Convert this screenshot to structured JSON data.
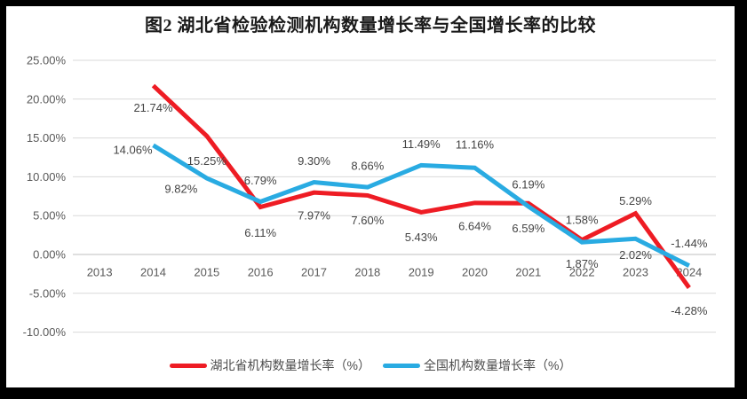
{
  "chart_data": {
    "type": "line",
    "title": "图2  湖北省检验检测机构数量增长率与全国增长率的比较",
    "categories": [
      "2013",
      "2014",
      "2015",
      "2016",
      "2017",
      "2018",
      "2019",
      "2020",
      "2021",
      "2022",
      "2023",
      "2024"
    ],
    "series": [
      {
        "name": "湖北省机构数量增长率（%）",
        "color": "#ee1c24",
        "values": [
          null,
          21.74,
          15.25,
          6.11,
          7.97,
          7.6,
          5.43,
          6.64,
          6.59,
          1.87,
          5.29,
          -4.28
        ],
        "point_labels": [
          "",
          "21.74%",
          "15.25%",
          "6.11%",
          "7.97%",
          "7.60%",
          "5.43%",
          "6.64%",
          "6.59%",
          "1.87%",
          "5.29%",
          "-4.28%"
        ],
        "label_offsets": [
          [
            0,
            0
          ],
          [
            0,
            25
          ],
          [
            0,
            28
          ],
          [
            0,
            29
          ],
          [
            0,
            26
          ],
          [
            0,
            28
          ],
          [
            0,
            28
          ],
          [
            0,
            26
          ],
          [
            0,
            28
          ],
          [
            0,
            27
          ],
          [
            0,
            -14
          ],
          [
            0,
            26
          ]
        ]
      },
      {
        "name": "全国机构数量增长率（%）",
        "color": "#29abe2",
        "values": [
          null,
          14.06,
          9.82,
          6.79,
          9.3,
          8.66,
          11.49,
          11.16,
          6.19,
          1.58,
          2.02,
          -1.44
        ],
        "point_labels": [
          "",
          "14.06%",
          "9.82%",
          "6.79%",
          "9.30%",
          "8.66%",
          "11.49%",
          "11.16%",
          "6.19%",
          "1.58%",
          "2.02%",
          "-1.44%"
        ],
        "label_offsets": [
          [
            0,
            0
          ],
          [
            -23,
            5
          ],
          [
            -29,
            12
          ],
          [
            0,
            -24
          ],
          [
            0,
            -24
          ],
          [
            0,
            -24
          ],
          [
            0,
            -24
          ],
          [
            0,
            -26
          ],
          [
            0,
            -25
          ],
          [
            0,
            -25
          ],
          [
            0,
            18
          ],
          [
            0,
            -25
          ]
        ]
      }
    ],
    "y_axis": {
      "min": -10,
      "max": 25,
      "step": 5,
      "ticks": [
        {
          "value": 25,
          "label": "25.00%"
        },
        {
          "value": 20,
          "label": "20.00%"
        },
        {
          "value": 15,
          "label": "15.00%"
        },
        {
          "value": 10,
          "label": "10.00%"
        },
        {
          "value": 5,
          "label": "5.00%"
        },
        {
          "value": 0,
          "label": "0.00%"
        },
        {
          "value": -5,
          "label": "-5.00%"
        },
        {
          "value": -10,
          "label": "-10.00%"
        }
      ]
    },
    "grid": true,
    "legend_position": "bottom",
    "colors": {
      "gridline": "#d9d9d9",
      "zero_line": "#bfbfbf",
      "tick_text": "#595959",
      "data_label_text": "#444444"
    }
  }
}
